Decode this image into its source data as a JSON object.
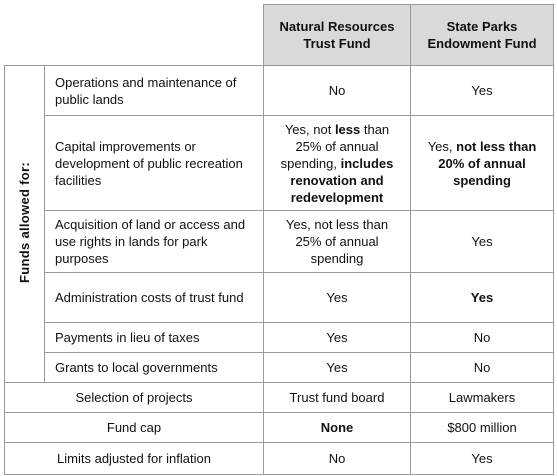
{
  "header": {
    "columns": [
      "Natural Resources Trust Fund",
      "State Parks Endowment Fund"
    ]
  },
  "group_label": "Funds allowed for:",
  "rows": [
    {
      "label": "Operations and maintenance of public lands",
      "cells": [
        [
          {
            "text": "No"
          }
        ],
        [
          {
            "text": "Yes"
          }
        ]
      ]
    },
    {
      "label": "Capital improvements or development of public recreation facilities",
      "cells": [
        [
          {
            "text": "Yes, not "
          },
          {
            "text": "less",
            "bold": true
          },
          {
            "text": " than 25% of annual spending, "
          },
          {
            "text": "includes renovation and redevelopment",
            "bold": true
          }
        ],
        [
          {
            "text": "Yes, "
          },
          {
            "text": "not less than 20% of annual spending",
            "bold": true
          }
        ]
      ]
    },
    {
      "label": "Acquisition of land or access and use rights in lands for park purposes",
      "cells": [
        [
          {
            "text": "Yes, not less than 25% of annual spending"
          }
        ],
        [
          {
            "text": "Yes"
          }
        ]
      ]
    },
    {
      "label": "Administration costs of trust fund",
      "cells": [
        [
          {
            "text": "Yes"
          }
        ],
        [
          {
            "text": "Yes",
            "bold": true
          }
        ]
      ]
    },
    {
      "label": "Payments in lieu of taxes",
      "cells": [
        [
          {
            "text": "Yes"
          }
        ],
        [
          {
            "text": "No"
          }
        ]
      ]
    },
    {
      "label": "Grants to local governments",
      "cells": [
        [
          {
            "text": "Yes"
          }
        ],
        [
          {
            "text": "No"
          }
        ]
      ]
    }
  ],
  "other_rows": [
    {
      "label": "Selection of projects",
      "cells": [
        [
          {
            "text": "Trust fund board"
          }
        ],
        [
          {
            "text": "Lawmakers"
          }
        ]
      ]
    },
    {
      "label": "Fund cap",
      "cells": [
        [
          {
            "text": "None",
            "bold": true
          }
        ],
        [
          {
            "text": "$800 million"
          }
        ]
      ]
    },
    {
      "label": "Limits adjusted for inflation",
      "cells": [
        [
          {
            "text": "No"
          }
        ],
        [
          {
            "text": "Yes"
          }
        ]
      ]
    }
  ]
}
